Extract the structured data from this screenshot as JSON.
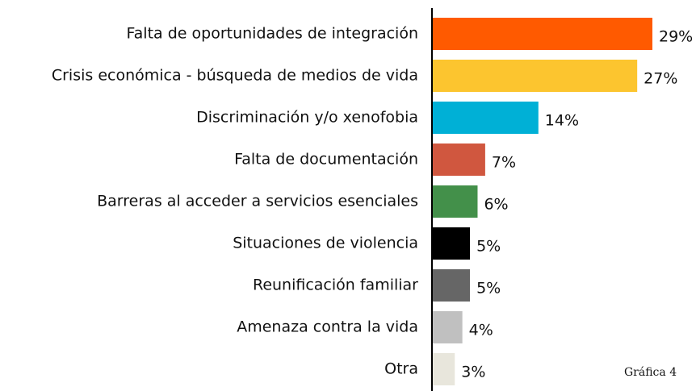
{
  "chart_data": {
    "type": "bar",
    "orientation": "horizontal",
    "categories": [
      "Falta de oportunidades de integración",
      "Crisis económica - búsqueda de medios de vida",
      "Discriminación y/o xenofobia",
      "Falta de documentación",
      "Barreras al acceder a servicios esenciales",
      "Situaciones de violencia",
      "Reunificación familiar",
      "Amenaza contra la vida",
      "Otra"
    ],
    "values": [
      29,
      27,
      14,
      7,
      6,
      5,
      5,
      4,
      3
    ],
    "value_labels": [
      "29%",
      "27%",
      "14%",
      "7%",
      "6%",
      "5%",
      "5%",
      "4%",
      "3%"
    ],
    "colors": [
      "#ff5a00",
      "#fcc52f",
      "#00b0d6",
      "#d0573f",
      "#43904a",
      "#000000",
      "#666666",
      "#c0c0c0",
      "#e8e6dc"
    ],
    "annotation": "Gráfica 4"
  }
}
